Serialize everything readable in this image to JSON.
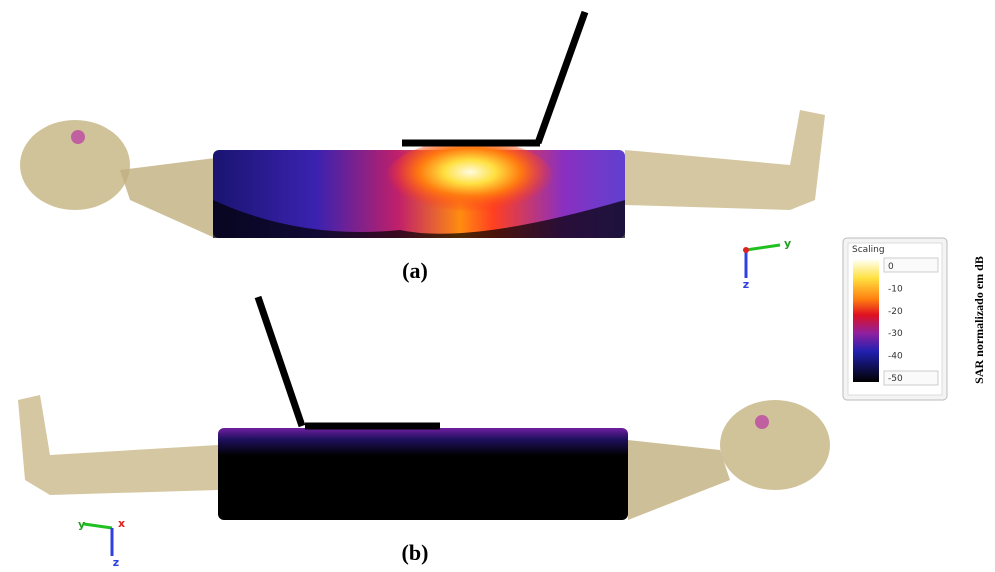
{
  "panels": [
    {
      "label": "(a)",
      "axes": [
        "y",
        "z"
      ]
    },
    {
      "label": "(b)",
      "axes": [
        "y",
        "x",
        "z"
      ]
    }
  ],
  "scale": {
    "title": "Scaling",
    "ticks": [
      0,
      -10,
      -20,
      -30,
      -40,
      -50
    ],
    "label": "SAR normalizado em dB"
  }
}
